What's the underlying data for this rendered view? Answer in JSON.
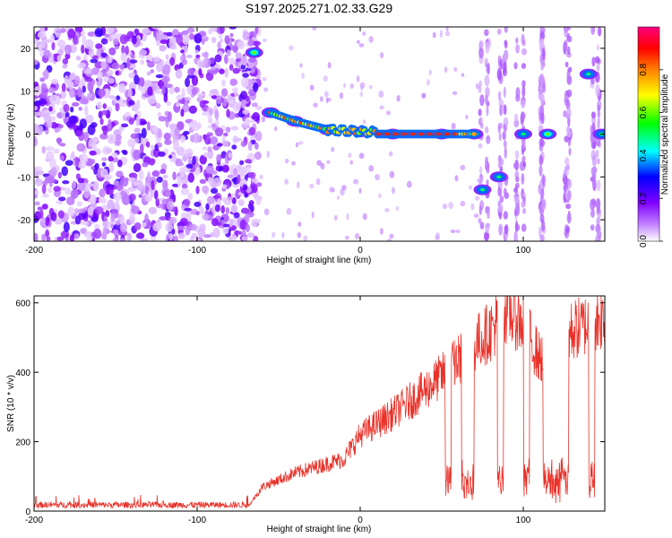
{
  "title": "S197.2025.271.02.33.G29",
  "chart_data": [
    {
      "type": "heatmap",
      "name": "spectrogram",
      "xlabel": "Height of straight line (km)",
      "ylabel": "Frequency (Hz)",
      "xlim": [
        -200,
        150
      ],
      "ylim": [
        -25,
        25
      ],
      "xticks": [
        -200,
        -100,
        0,
        100
      ],
      "yticks": [
        20,
        10,
        0,
        -10,
        -20
      ],
      "colorbar": {
        "label": "Normalized spectral amplitude",
        "range": [
          0,
          1
        ],
        "ticks": [
          "0.0",
          "0.2",
          "0.4",
          "0.6",
          "0.8"
        ],
        "colors": [
          "#ffffff",
          "#8000ff",
          "#0000ff",
          "#00ffff",
          "#00ff00",
          "#ffff00",
          "#ff8000",
          "#ff0000",
          "#ff0080"
        ]
      },
      "ridge": {
        "description_points": [
          {
            "x": -65,
            "y": 19,
            "amp": 0.6
          },
          {
            "x": -55,
            "y": 5,
            "amp": 0.5
          },
          {
            "x": -40,
            "y": 3,
            "amp": 0.7
          },
          {
            "x": -20,
            "y": 1,
            "amp": 0.8
          },
          {
            "x": 0,
            "y": 0.5,
            "amp": 0.8
          },
          {
            "x": 20,
            "y": 0,
            "amp": 0.9
          },
          {
            "x": 50,
            "y": 0,
            "amp": 0.9
          },
          {
            "x": 70,
            "y": 0,
            "amp": 0.7
          },
          {
            "x": 75,
            "y": -13,
            "amp": 0.5
          },
          {
            "x": 85,
            "y": -10,
            "amp": 0.5
          },
          {
            "x": 100,
            "y": 0,
            "amp": 0.5
          },
          {
            "x": 115,
            "y": 0,
            "amp": 0.6
          },
          {
            "x": 140,
            "y": 14,
            "amp": 0.5
          },
          {
            "x": 148,
            "y": 0,
            "amp": 0.5
          }
        ]
      }
    },
    {
      "type": "line",
      "name": "snr",
      "xlabel": "Height of straight line (km)",
      "ylabel": "SNR (10 * v/v)",
      "xlim": [
        -200,
        150
      ],
      "ylim": [
        0,
        620
      ],
      "xticks": [
        -200,
        -100,
        0,
        100
      ],
      "yticks": [
        0,
        200,
        400,
        600
      ],
      "color": "#e8322a",
      "trend": [
        {
          "x": -200,
          "y": 18
        },
        {
          "x": -68,
          "y": 18
        },
        {
          "x": -60,
          "y": 70
        },
        {
          "x": -40,
          "y": 110
        },
        {
          "x": -10,
          "y": 150
        },
        {
          "x": 0,
          "y": 220
        },
        {
          "x": 20,
          "y": 280
        },
        {
          "x": 40,
          "y": 350
        },
        {
          "x": 55,
          "y": 410
        },
        {
          "x": 65,
          "y": 460
        },
        {
          "x": 70,
          "y": 480
        },
        {
          "x": 80,
          "y": 520
        },
        {
          "x": 90,
          "y": 580
        },
        {
          "x": 100,
          "y": 540
        },
        {
          "x": 110,
          "y": 440
        },
        {
          "x": 130,
          "y": 520
        },
        {
          "x": 150,
          "y": 560
        }
      ]
    }
  ]
}
